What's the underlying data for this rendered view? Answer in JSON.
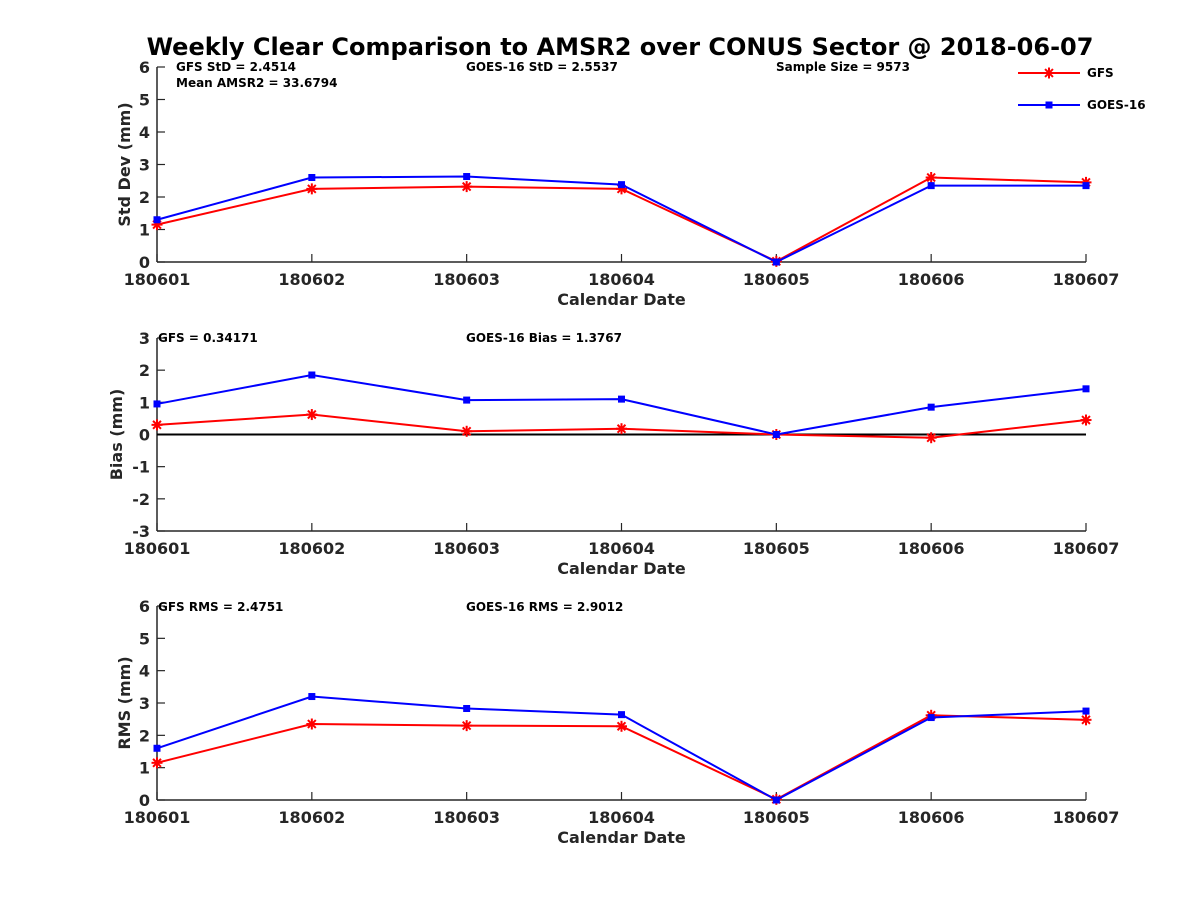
{
  "title": "Weekly Clear Comparison to AMSR2 over CONUS Sector @ 2018-06-07",
  "colors": {
    "GFS": "#ff0000",
    "GOES-16": "#0000ff",
    "zero_line": "#000000",
    "axis": "#262626"
  },
  "legend": {
    "placement": "top-right",
    "entries": [
      {
        "name": "GFS",
        "color": "#ff0000",
        "marker": "asterisk"
      },
      {
        "name": "GOES-16",
        "color": "#0000ff",
        "marker": "square"
      }
    ]
  },
  "chart_data": [
    {
      "type": "line",
      "categories": [
        "180601",
        "180602",
        "180603",
        "180604",
        "180605",
        "180606",
        "180607"
      ],
      "xlabel": "Calendar Date",
      "ylabel": "Std Dev (mm)",
      "ylim": [
        0,
        6
      ],
      "yticks": [
        "0",
        "1",
        "2",
        "3",
        "4",
        "5",
        "6"
      ],
      "grid": false,
      "annotations": [
        "GFS StD = 2.4514",
        "Mean AMSR2 = 33.6794",
        "GOES-16 StD = 2.5537",
        "Sample Size = 9573"
      ],
      "series": [
        {
          "name": "GFS",
          "values": [
            1.15,
            2.25,
            2.32,
            2.25,
            0.02,
            2.6,
            2.45
          ]
        },
        {
          "name": "GOES-16",
          "values": [
            1.3,
            2.6,
            2.63,
            2.38,
            0.0,
            2.35,
            2.35
          ]
        }
      ]
    },
    {
      "type": "line",
      "categories": [
        "180601",
        "180602",
        "180603",
        "180604",
        "180605",
        "180606",
        "180607"
      ],
      "xlabel": "Calendar Date",
      "ylabel": "Bias (mm)",
      "ylim": [
        -3,
        3
      ],
      "yticks": [
        "-3",
        "-2",
        "-1",
        "0",
        "1",
        "2",
        "3"
      ],
      "grid": false,
      "zero_line": true,
      "annotations": [
        "GFS = 0.34171",
        "GOES-16 Bias  = 1.3767"
      ],
      "series": [
        {
          "name": "GFS",
          "values": [
            0.3,
            0.62,
            0.1,
            0.18,
            0.0,
            -0.1,
            0.45
          ]
        },
        {
          "name": "GOES-16",
          "values": [
            0.95,
            1.85,
            1.07,
            1.1,
            0.0,
            0.85,
            1.42
          ]
        }
      ]
    },
    {
      "type": "line",
      "categories": [
        "180601",
        "180602",
        "180603",
        "180604",
        "180605",
        "180606",
        "180607"
      ],
      "xlabel": "Calendar Date",
      "ylabel": "RMS (mm)",
      "ylim": [
        0,
        6
      ],
      "yticks": [
        "0",
        "1",
        "2",
        "3",
        "4",
        "5",
        "6"
      ],
      "grid": false,
      "annotations": [
        "GFS RMS = 2.4751",
        "GOES-16 RMS = 2.9012"
      ],
      "series": [
        {
          "name": "GFS",
          "values": [
            1.15,
            2.35,
            2.3,
            2.28,
            0.02,
            2.62,
            2.48
          ]
        },
        {
          "name": "GOES-16",
          "values": [
            1.6,
            3.2,
            2.83,
            2.64,
            0.0,
            2.55,
            2.75
          ]
        }
      ]
    }
  ]
}
